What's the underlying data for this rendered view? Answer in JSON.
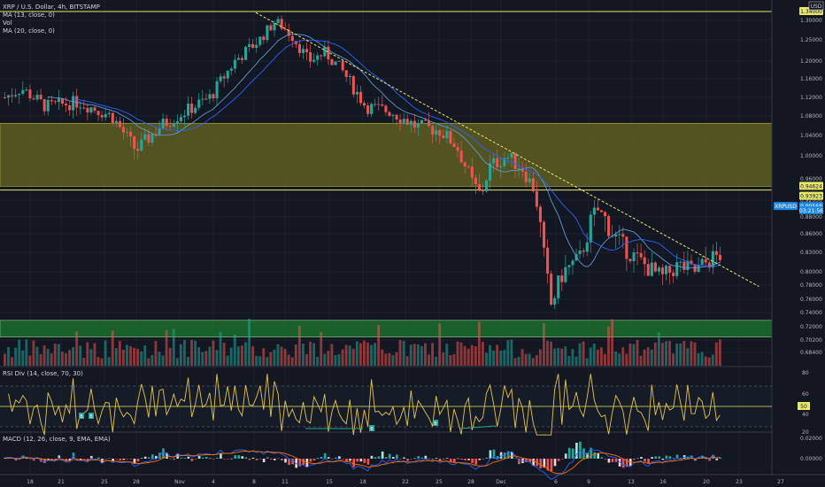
{
  "header": {
    "symbol_line": "XRP / U.S. Dollar, 4h, BITSTAMP",
    "legend_ma13": "MA (13, close, 0)",
    "legend_vol": "Vol",
    "legend_ma20": "MA (20, close, 0)"
  },
  "axis": {
    "currency": "USD",
    "price_ticks": [
      "1.30000",
      "1.25000",
      "1.20000",
      "1.16000",
      "1.12000",
      "1.08000",
      "1.04000",
      "1.00000",
      "0.96000",
      "0.92000",
      "0.88000",
      "0.86000",
      "0.83000",
      "0.80000",
      "0.78000",
      "0.76000",
      "0.74000",
      "0.72000",
      "0.70200",
      "0.68400"
    ],
    "price_badges": [
      {
        "label": "1.34000",
        "price": 1.34,
        "color": "#e8e866"
      },
      {
        "label": "0.94624",
        "price": 0.946,
        "color": "#e8e866"
      },
      {
        "label": "0.93923",
        "price": 0.939,
        "color": "#e8e866"
      },
      {
        "label": "XRPUSD",
        "price": 0.905,
        "color": "#1e88e5"
      },
      {
        "label": "0.90568",
        "price": 0.905,
        "color": "#1e88e5"
      },
      {
        "label": "03:21:56",
        "price": 0.895,
        "color": "#1e88e5"
      }
    ],
    "time_ticks": [
      "18",
      "21",
      "25",
      "28",
      "Nov",
      "4",
      "8",
      "11",
      "15",
      "18",
      "22",
      "25",
      "28",
      "Dec",
      "6",
      "9",
      "13",
      "16",
      "20",
      "23",
      "27"
    ]
  },
  "zones": {
    "resistance_line": 1.34,
    "supply_zone": [
      0.946,
      1.065
    ],
    "support_line": 0.939,
    "demand_zone": [
      0.706,
      0.729
    ],
    "trendline_from": [
      0.31,
      1.335
    ],
    "trendline_to": [
      0.92,
      0.778
    ]
  },
  "rsi": {
    "title": "RSI Div (14, close, 70, 30)",
    "levels": [
      "80",
      "60",
      "50",
      "40",
      "20"
    ],
    "badge": "50",
    "div_labels": [
      "B",
      "B",
      "B",
      "B"
    ]
  },
  "macd": {
    "title": "MACD (12, 26, close, 9, EMA, EMA)",
    "levels": [
      "0.02000",
      "0.00000"
    ]
  },
  "colors": {
    "background": "#131722",
    "bull": "#26a69a",
    "bear": "#ef5350",
    "ma13": "#5b9bd5",
    "ma20": "#2962ff",
    "trendline": "#e8e866",
    "supply_fill": "#6b6b21",
    "demand_fill": "#1b6d2e",
    "rsi_line": "#e8c547",
    "macd_line": "#2962ff",
    "signal_line": "#ff6d00"
  },
  "chart_data": {
    "type": "candlestick",
    "title": "XRP / U.S. Dollar, 4h, BITSTAMP",
    "y_unit": "USD",
    "ylim": [
      0.68,
      1.34
    ],
    "x_labels": [
      "18",
      "21",
      "25",
      "28",
      "Nov",
      "4",
      "8",
      "11",
      "15",
      "18",
      "22",
      "25",
      "28",
      "Dec",
      "6",
      "9",
      "13",
      "16",
      "20",
      "23",
      "27"
    ],
    "close_path": [
      {
        "x": 0.0,
        "y": 1.12
      },
      {
        "x": 0.02,
        "y": 1.14
      },
      {
        "x": 0.05,
        "y": 1.1
      },
      {
        "x": 0.09,
        "y": 1.11
      },
      {
        "x": 0.13,
        "y": 1.08
      },
      {
        "x": 0.16,
        "y": 1.01
      },
      {
        "x": 0.19,
        "y": 1.06
      },
      {
        "x": 0.22,
        "y": 1.09
      },
      {
        "x": 0.25,
        "y": 1.12
      },
      {
        "x": 0.28,
        "y": 1.2
      },
      {
        "x": 0.31,
        "y": 1.25
      },
      {
        "x": 0.33,
        "y": 1.3
      },
      {
        "x": 0.35,
        "y": 1.26
      },
      {
        "x": 0.37,
        "y": 1.2
      },
      {
        "x": 0.39,
        "y": 1.22
      },
      {
        "x": 0.41,
        "y": 1.18
      },
      {
        "x": 0.44,
        "y": 1.1
      },
      {
        "x": 0.47,
        "y": 1.09
      },
      {
        "x": 0.5,
        "y": 1.06
      },
      {
        "x": 0.53,
        "y": 1.05
      },
      {
        "x": 0.55,
        "y": 1.02
      },
      {
        "x": 0.57,
        "y": 0.95
      },
      {
        "x": 0.58,
        "y": 0.93
      },
      {
        "x": 0.59,
        "y": 0.98
      },
      {
        "x": 0.61,
        "y": 1.0
      },
      {
        "x": 0.63,
        "y": 0.98
      },
      {
        "x": 0.645,
        "y": 0.94
      },
      {
        "x": 0.655,
        "y": 0.84
      },
      {
        "x": 0.665,
        "y": 0.75
      },
      {
        "x": 0.68,
        "y": 0.8
      },
      {
        "x": 0.7,
        "y": 0.82
      },
      {
        "x": 0.72,
        "y": 0.9
      },
      {
        "x": 0.74,
        "y": 0.86
      },
      {
        "x": 0.76,
        "y": 0.83
      },
      {
        "x": 0.78,
        "y": 0.81
      },
      {
        "x": 0.8,
        "y": 0.79
      },
      {
        "x": 0.82,
        "y": 0.81
      },
      {
        "x": 0.84,
        "y": 0.8
      },
      {
        "x": 0.86,
        "y": 0.82
      },
      {
        "x": 0.88,
        "y": 0.83
      },
      {
        "x": 0.9,
        "y": 0.86
      },
      {
        "x": 0.915,
        "y": 0.9
      }
    ]
  }
}
